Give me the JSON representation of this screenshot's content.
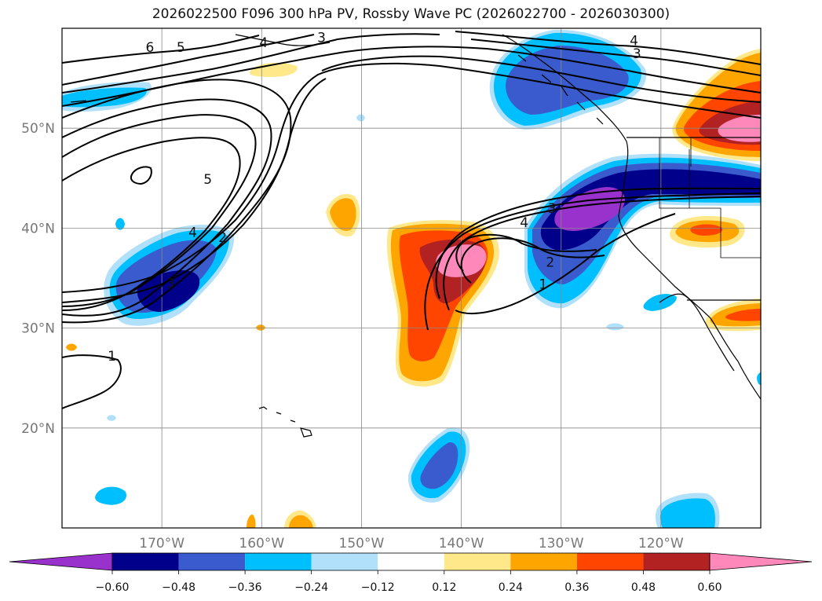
{
  "chart_data": {
    "type": "map-contour",
    "title": "2026022500 F096 300 hPa PV, Rossby Wave PC (2026022700 - 2026030300)",
    "x_axis": {
      "label": "",
      "range": [
        -180,
        -110
      ],
      "ticks": [
        -170,
        -160,
        -150,
        -140,
        -130,
        -120
      ],
      "tick_labels": [
        "170°W",
        "160°W",
        "150°W",
        "140°W",
        "130°W",
        "120°W"
      ]
    },
    "y_axis": {
      "label": "",
      "range": [
        10,
        60
      ],
      "ticks": [
        20,
        30,
        40,
        50
      ],
      "tick_labels": [
        "20°N",
        "30°N",
        "40°N",
        "50°N"
      ]
    },
    "grid": true,
    "colorbar": {
      "boundaries": [
        -0.6,
        -0.48,
        -0.36,
        -0.24,
        -0.12,
        0.12,
        0.24,
        0.36,
        0.48,
        0.6
      ],
      "tick_labels": [
        "−0.60",
        "−0.48",
        "−0.36",
        "−0.24",
        "−0.12",
        "0.12",
        "0.24",
        "0.36",
        "0.48",
        "0.60"
      ],
      "colors": [
        "#9932cc",
        "#00008b",
        "#3a5bcd",
        "#00bfff",
        "#b0e0fa",
        "#ffffff",
        "#ffe88a",
        "#ffa500",
        "#ff4500",
        "#b22222",
        "#ff88bb"
      ],
      "extend": "both"
    },
    "pv_contours": {
      "levels": [
        1,
        2,
        3,
        4,
        5,
        6
      ],
      "labels": [
        {
          "text": "6",
          "lon": -171.2,
          "lat": 58.1
        },
        {
          "text": "5",
          "lon": -168.1,
          "lat": 58.1
        },
        {
          "text": "4",
          "lon": -159.8,
          "lat": 58.6
        },
        {
          "text": "3",
          "lon": -154.0,
          "lat": 59.1
        },
        {
          "text": "4",
          "lon": -122.7,
          "lat": 58.8
        },
        {
          "text": "3",
          "lon": -122.4,
          "lat": 57.5
        },
        {
          "text": "5",
          "lon": -165.4,
          "lat": 44.9
        },
        {
          "text": "4",
          "lon": -166.9,
          "lat": 39.6
        },
        {
          "text": "2",
          "lon": -163.9,
          "lat": 39.1
        },
        {
          "text": "3",
          "lon": -169.1,
          "lat": 34.5
        },
        {
          "text": "4",
          "lon": -133.7,
          "lat": 40.6
        },
        {
          "text": "3",
          "lon": -130.9,
          "lat": 42.0
        },
        {
          "text": "2",
          "lon": -131.1,
          "lat": 36.6
        },
        {
          "text": "1",
          "lon": -131.8,
          "lat": 34.4
        },
        {
          "text": "1",
          "lon": -175.0,
          "lat": 27.2
        }
      ]
    }
  }
}
